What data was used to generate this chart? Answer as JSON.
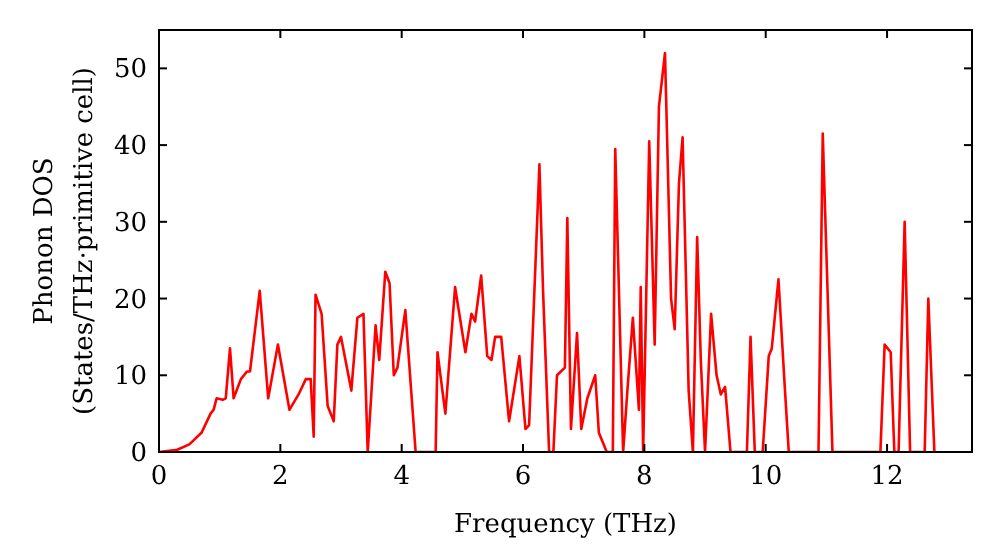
{
  "chart_data": {
    "type": "line",
    "xlabel": "Frequency (THz)",
    "ylabel": "Phonon DOS\n(States/THz·primitive cell)",
    "xlim": [
      0,
      13.4
    ],
    "ylim": [
      0,
      55
    ],
    "xticks": [
      0,
      2,
      4,
      6,
      8,
      10,
      12
    ],
    "yticks": [
      0,
      10,
      20,
      30,
      40,
      50
    ],
    "grid": false,
    "line_style": "solid",
    "marker": "none",
    "series": [
      {
        "color": "#ff0000",
        "x": [
          0,
          0.3,
          0.5,
          0.7,
          0.85,
          0.9,
          0.95,
          1.05,
          1.1,
          1.17,
          1.23,
          1.35,
          1.45,
          1.5,
          1.66,
          1.8,
          1.96,
          2.15,
          2.3,
          2.42,
          2.5,
          2.55,
          2.58,
          2.68,
          2.78,
          2.88,
          2.94,
          3.0,
          3.17,
          3.27,
          3.37,
          3.44,
          3.57,
          3.63,
          3.73,
          3.8,
          3.87,
          3.93,
          4.06,
          4.23,
          4.56,
          4.59,
          4.72,
          4.88,
          5.05,
          5.15,
          5.21,
          5.31,
          5.41,
          5.48,
          5.54,
          5.64,
          5.77,
          5.94,
          6.04,
          6.1,
          6.27,
          6.33,
          6.43,
          6.5,
          6.56,
          6.69,
          6.73,
          6.79,
          6.89,
          6.96,
          7.06,
          7.19,
          7.25,
          7.38,
          7.48,
          7.52,
          7.65,
          7.72,
          7.81,
          7.91,
          7.94,
          7.98,
          8.08,
          8.17,
          8.24,
          8.34,
          8.44,
          8.5,
          8.57,
          8.63,
          8.73,
          8.8,
          8.87,
          8.93,
          9.0,
          9.1,
          9.19,
          9.26,
          9.33,
          9.42,
          9.69,
          9.75,
          9.82,
          9.95,
          10.05,
          10.1,
          10.21,
          10.31,
          10.38,
          10.87,
          10.94,
          11.1,
          11.89,
          11.96,
          12.06,
          12.12,
          12.19,
          12.29,
          12.38,
          12.62,
          12.68,
          12.78
        ],
        "values": [
          0,
          0.3,
          1,
          2.5,
          5,
          5.5,
          7,
          6.8,
          7,
          13.5,
          7,
          9.5,
          10.5,
          10.5,
          21,
          7,
          14,
          5.5,
          7.5,
          9.5,
          9.5,
          2,
          20.5,
          18,
          6,
          4,
          14,
          15,
          8,
          17.5,
          18,
          0,
          16.5,
          12,
          23.5,
          22,
          10,
          11,
          18.5,
          0,
          0,
          13,
          5,
          21.5,
          13,
          18,
          17,
          23,
          12.5,
          12,
          15,
          15,
          4,
          12.5,
          3,
          3.5,
          37.5,
          21,
          0,
          0,
          10,
          11,
          30.5,
          3,
          15.5,
          3,
          7,
          10,
          2.5,
          0,
          0,
          39.5,
          0,
          8,
          17.5,
          5.5,
          21.5,
          0,
          40.5,
          14,
          45,
          52,
          20,
          16,
          35,
          41,
          8,
          0,
          28,
          12,
          0,
          18,
          10,
          7.5,
          8.5,
          0,
          0,
          15,
          0,
          0,
          12.5,
          13.5,
          22.5,
          9,
          0,
          0,
          41.5,
          0,
          0,
          14,
          13,
          0,
          0,
          30,
          0,
          0,
          20,
          0
        ]
      }
    ]
  }
}
